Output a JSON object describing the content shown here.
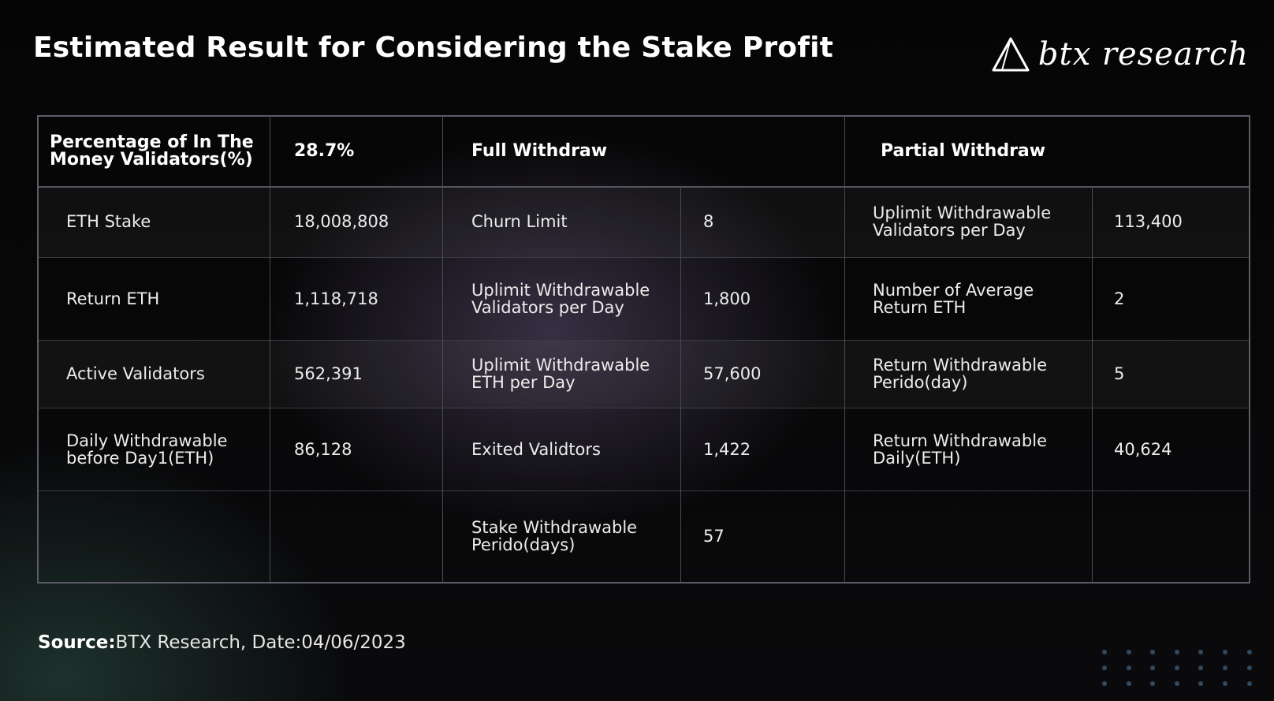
{
  "title": "Estimated Result for Considering the Stake Profit",
  "logo": {
    "text": "btx research",
    "icon": "triangle-logo-icon"
  },
  "table": {
    "header": {
      "label": "Percentage of In The Money Validators(%)",
      "value": "28.7%",
      "full_withdraw": "Full Withdraw",
      "partial_withdraw": "Partial Withdraw"
    },
    "rows": [
      {
        "label": "ETH Stake",
        "value": "18,008,808",
        "fw_label": "Churn Limit",
        "fw_value": "8",
        "pw_label": "Uplimit Withdrawable Validators per Day",
        "pw_value": "113,400"
      },
      {
        "label": "Return ETH",
        "value": "1,118,718",
        "fw_label": "Uplimit Withdrawable Validators per Day",
        "fw_value": "1,800",
        "pw_label": "Number of Average Return ETH",
        "pw_value": "2"
      },
      {
        "label": "Active Validators",
        "value": "562,391",
        "fw_label": "Uplimit Withdrawable ETH per Day",
        "fw_value": "57,600",
        "pw_label": "Return Withdrawable Perido(day)",
        "pw_value": "5"
      },
      {
        "label": "Daily Withdrawable before Day1(ETH)",
        "value": "86,128",
        "fw_label": "Exited Validtors",
        "fw_value": "1,422",
        "pw_label": "Return Withdrawable Daily(ETH)",
        "pw_value": "40,624"
      },
      {
        "label": "",
        "value": "",
        "fw_label": "Stake Withdrawable Perido(days)",
        "fw_value": "57",
        "pw_label": "",
        "pw_value": ""
      }
    ]
  },
  "source": {
    "prefix": "Source:",
    "text": "BTX Research, Date:04/06/2023"
  },
  "colors": {
    "background": "#050505",
    "grid_line": "#5c5c66",
    "dots": "#33495e"
  }
}
